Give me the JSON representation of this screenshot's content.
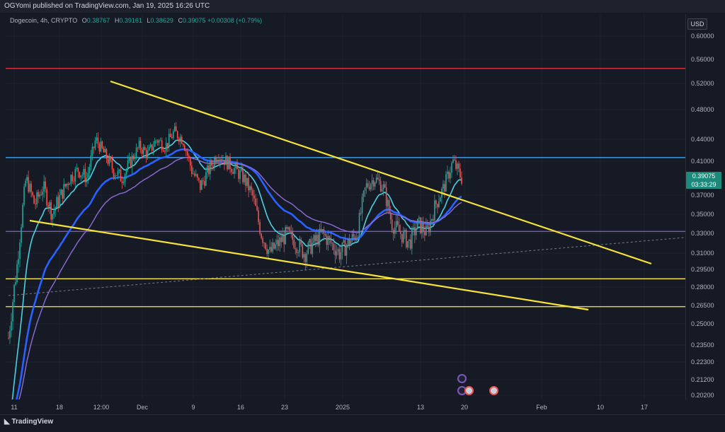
{
  "header": {
    "publish_line": "OGYomi published on TradingView.com, Jan 19, 2025 16:26 UTC"
  },
  "legend": {
    "symbol": "Dogecoin, 4h, CRYPTO",
    "o_label": "O",
    "o": "0.38767",
    "h_label": "H",
    "h": "0.39161",
    "l_label": "L",
    "l": "0.38629",
    "c_label": "C",
    "c": "0.39075",
    "change": "+0.00308 (+0.79%)"
  },
  "currency": "USD",
  "price_badge": {
    "price": "0.39075",
    "countdown": "03:33:29"
  },
  "y_ticks": [
    "0.60000",
    "0.56000",
    "0.52000",
    "0.48000",
    "0.44000",
    "0.41000",
    "0.37000",
    "0.35000",
    "0.33000",
    "0.31000",
    "0.29500",
    "0.28000",
    "0.26500",
    "0.25000",
    "0.23500",
    "0.22300",
    "0.21200",
    "0.20200"
  ],
  "x_ticks": [
    "11",
    "18",
    "12:00",
    "Dec",
    "9",
    "16",
    "23",
    "2025",
    "13",
    "20",
    "Feb",
    "10",
    "17"
  ],
  "branding": "TradingView",
  "colors": {
    "up": "#26a69a",
    "down": "#ef5350",
    "trend": "#f5e33b",
    "support": "#ffeb3b",
    "resistance_red": "#f23645",
    "resistance_blue": "#42a5f5",
    "mid_purple": "#7e57c2",
    "ma_cyan": "#4dd0e1",
    "ma_blue": "#2962ff",
    "ma_purple": "#8e6cd9"
  },
  "chart_data": {
    "type": "candlestick",
    "symbol": "Dogecoin",
    "interval": "4h",
    "y_range": [
      0.2,
      0.62
    ],
    "horizontal_levels": [
      {
        "price": 0.545,
        "color": "resistance_red"
      },
      {
        "price": 0.415,
        "color": "resistance_blue"
      },
      {
        "price": 0.332,
        "color": "mid_purple"
      },
      {
        "price": 0.287,
        "color": "support"
      },
      {
        "price": 0.264,
        "color": "support"
      }
    ],
    "trend_lines": [
      {
        "name": "upper",
        "from": [
          "Nov 20",
          0.525
        ],
        "to": [
          "Feb 16",
          0.301
        ]
      },
      {
        "name": "lower",
        "from": [
          "Nov 12",
          0.346
        ],
        "to": [
          "Feb 11",
          0.261
        ]
      }
    ],
    "close_series": [
      0.24,
      0.3,
      0.39,
      0.36,
      0.38,
      0.35,
      0.37,
      0.39,
      0.4,
      0.39,
      0.44,
      0.42,
      0.4,
      0.39,
      0.41,
      0.43,
      0.42,
      0.44,
      0.43,
      0.45,
      0.44,
      0.4,
      0.38,
      0.4,
      0.42,
      0.41,
      0.4,
      0.39,
      0.37,
      0.33,
      0.31,
      0.32,
      0.33,
      0.32,
      0.31,
      0.32,
      0.33,
      0.32,
      0.31,
      0.32,
      0.33,
      0.38,
      0.39,
      0.38,
      0.34,
      0.33,
      0.32,
      0.34,
      0.33,
      0.36,
      0.38,
      0.41,
      0.39
    ]
  }
}
